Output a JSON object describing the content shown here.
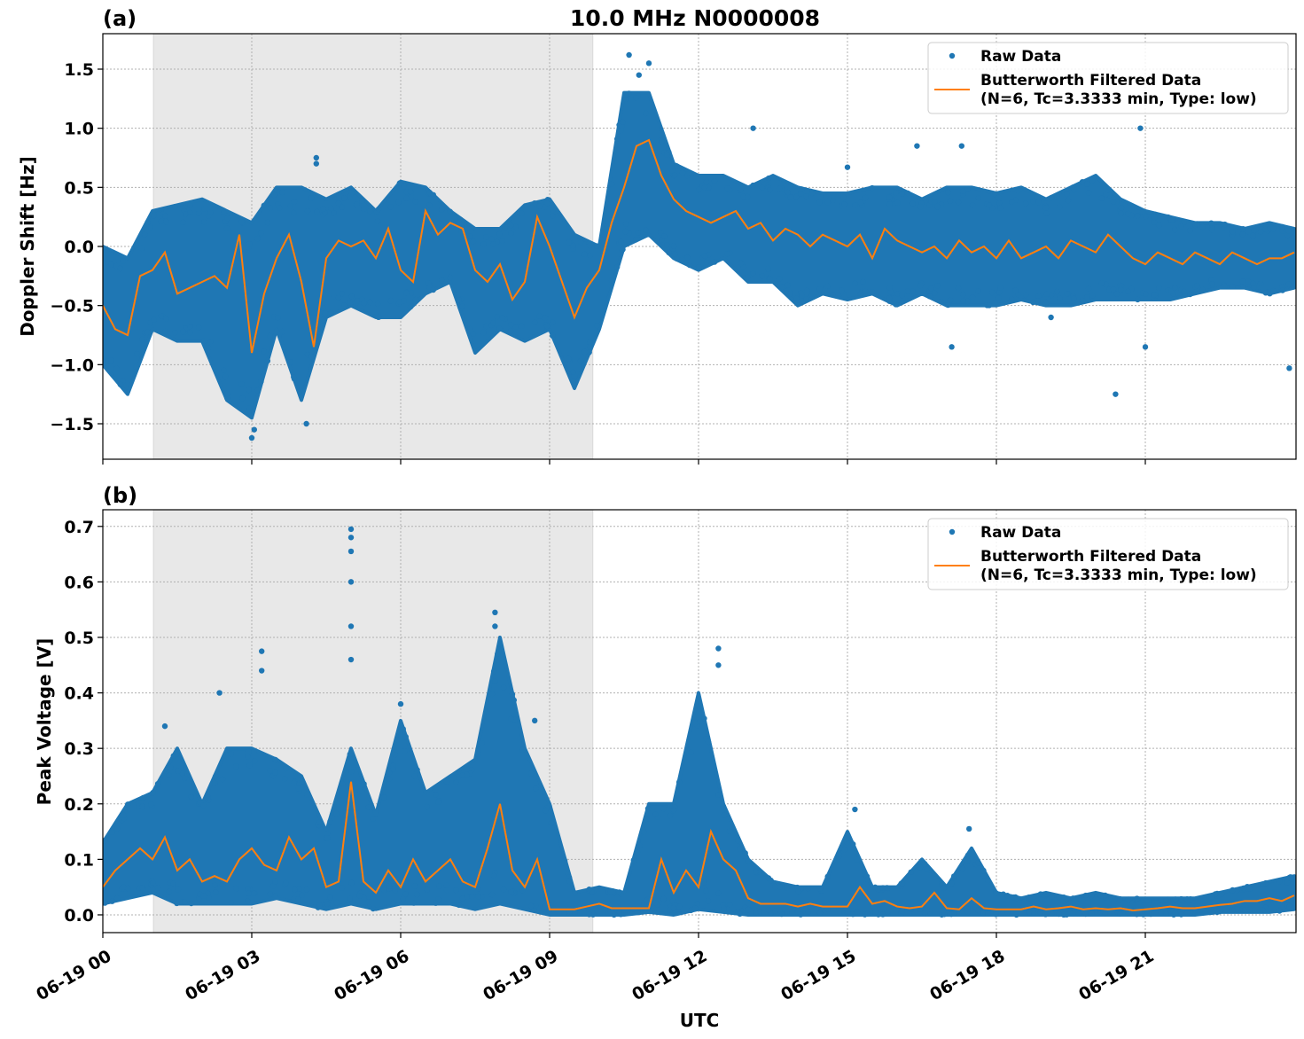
{
  "title": "10.0 MHz N0000008",
  "colors": {
    "raw": "#1f77b4",
    "filtered": "#ff7f0e",
    "shade": "#e8e8e8"
  },
  "legend": {
    "raw": "Raw Data",
    "filtered_line1": "Butterworth Filtered Data",
    "filtered_line2": "(N=6, Tc=3.3333 min, Type: low)",
    "placement": "upper-right"
  },
  "xaxis": {
    "label": "UTC",
    "unit": "hours since 06-19 00 UTC",
    "xlim": [
      0,
      24
    ],
    "ticks": [
      0,
      3,
      6,
      9,
      12,
      15,
      18,
      21
    ],
    "tick_labels": [
      "06-19 00",
      "06-19 03",
      "06-19 06",
      "06-19 09",
      "06-19 12",
      "06-19 15",
      "06-19 18",
      "06-19 21"
    ]
  },
  "chart_data": [
    {
      "type": "scatter+line",
      "panel_label": "(a)",
      "ylabel": "Doppler Shift [Hz]",
      "ylim": [
        -1.8,
        1.8
      ],
      "yticks": [
        1.5,
        1.0,
        0.5,
        0.0,
        -0.5,
        -1.0,
        -1.5
      ],
      "ytick_labels": [
        "1.5",
        "1.0",
        "0.5",
        "0.0",
        "−0.5",
        "−1.0",
        "−1.5"
      ],
      "grid": true,
      "shaded_interval": [
        1.02,
        9.87
      ],
      "filtered": {
        "t_step_hours": 0.25,
        "values": [
          -0.5,
          -0.7,
          -0.75,
          -0.25,
          -0.2,
          -0.05,
          -0.4,
          -0.35,
          -0.3,
          -0.25,
          -0.35,
          0.1,
          -0.9,
          -0.4,
          -0.1,
          0.1,
          -0.3,
          -0.85,
          -0.1,
          0.05,
          0.0,
          0.05,
          -0.1,
          0.15,
          -0.2,
          -0.3,
          0.3,
          0.1,
          0.2,
          0.15,
          -0.2,
          -0.3,
          -0.15,
          -0.45,
          -0.3,
          0.25,
          0.0,
          -0.3,
          -0.6,
          -0.35,
          -0.2,
          0.2,
          0.5,
          0.85,
          0.9,
          0.6,
          0.4,
          0.3,
          0.25,
          0.2,
          0.25,
          0.3,
          0.15,
          0.2,
          0.05,
          0.15,
          0.1,
          0.0,
          0.1,
          0.05,
          0.0,
          0.1,
          -0.1,
          0.15,
          0.05,
          0.0,
          -0.05,
          0.0,
          -0.1,
          0.05,
          -0.05,
          0.0,
          -0.1,
          0.05,
          -0.1,
          -0.05,
          0.0,
          -0.1,
          0.05,
          0.0,
          -0.05,
          0.1,
          0.0,
          -0.1,
          -0.15,
          -0.05,
          -0.1,
          -0.15,
          -0.05,
          -0.1,
          -0.15,
          -0.05,
          -0.1,
          -0.15,
          -0.1,
          -0.1,
          -0.05
        ]
      },
      "raw": {
        "t_step_hours": 0.5,
        "high": [
          0.0,
          -0.1,
          0.3,
          0.35,
          0.4,
          0.3,
          0.2,
          0.5,
          0.5,
          0.4,
          0.5,
          0.3,
          0.55,
          0.5,
          0.3,
          0.15,
          0.15,
          0.35,
          0.4,
          0.1,
          0.0,
          1.3,
          1.3,
          0.7,
          0.6,
          0.6,
          0.5,
          0.6,
          0.5,
          0.45,
          0.45,
          0.5,
          0.5,
          0.4,
          0.5,
          0.5,
          0.45,
          0.5,
          0.4,
          0.5,
          0.6,
          0.4,
          0.3,
          0.25,
          0.2,
          0.2,
          0.15,
          0.2,
          0.15
        ],
        "low": [
          -1.0,
          -1.25,
          -0.7,
          -0.8,
          -0.8,
          -1.3,
          -1.45,
          -0.7,
          -1.3,
          -0.6,
          -0.5,
          -0.6,
          -0.6,
          -0.4,
          -0.3,
          -0.9,
          -0.7,
          -0.8,
          -0.7,
          -1.2,
          -0.7,
          0.0,
          0.1,
          -0.1,
          -0.2,
          -0.1,
          -0.3,
          -0.3,
          -0.5,
          -0.4,
          -0.45,
          -0.4,
          -0.5,
          -0.4,
          -0.5,
          -0.5,
          -0.5,
          -0.45,
          -0.5,
          -0.5,
          -0.45,
          -0.45,
          -0.45,
          -0.45,
          -0.4,
          -0.35,
          -0.35,
          -0.4,
          -0.35
        ],
        "outliers": [
          [
            10.6,
            1.62
          ],
          [
            11.0,
            1.55
          ],
          [
            10.8,
            1.45
          ],
          [
            3.0,
            -1.62
          ],
          [
            3.05,
            -1.55
          ],
          [
            4.3,
            0.75
          ],
          [
            4.3,
            0.7
          ],
          [
            4.1,
            -1.5
          ],
          [
            20.9,
            1.0
          ],
          [
            20.4,
            -1.25
          ],
          [
            13.1,
            1.0
          ],
          [
            17.3,
            0.85
          ],
          [
            15.0,
            0.67
          ],
          [
            16.4,
            0.85
          ],
          [
            19.1,
            -0.6
          ],
          [
            23.9,
            -1.03
          ],
          [
            21.0,
            -0.85
          ],
          [
            17.1,
            -0.85
          ]
        ]
      }
    },
    {
      "type": "scatter+line",
      "panel_label": "(b)",
      "ylabel": "Peak Voltage [V]",
      "ylim": [
        -0.032,
        0.73
      ],
      "yticks": [
        0.7,
        0.6,
        0.5,
        0.4,
        0.3,
        0.2,
        0.1,
        0.0
      ],
      "ytick_labels": [
        "0.7",
        "0.6",
        "0.5",
        "0.4",
        "0.3",
        "0.2",
        "0.1",
        "0.0"
      ],
      "grid": true,
      "shaded_interval": [
        1.02,
        9.87
      ],
      "filtered": {
        "t_step_hours": 0.25,
        "values": [
          0.05,
          0.08,
          0.1,
          0.12,
          0.1,
          0.14,
          0.08,
          0.1,
          0.06,
          0.07,
          0.06,
          0.1,
          0.12,
          0.09,
          0.08,
          0.14,
          0.1,
          0.12,
          0.05,
          0.06,
          0.24,
          0.06,
          0.04,
          0.08,
          0.05,
          0.1,
          0.06,
          0.08,
          0.1,
          0.06,
          0.05,
          0.12,
          0.2,
          0.08,
          0.05,
          0.1,
          0.01,
          0.01,
          0.01,
          0.015,
          0.02,
          0.012,
          0.012,
          0.012,
          0.012,
          0.1,
          0.04,
          0.08,
          0.05,
          0.15,
          0.1,
          0.08,
          0.03,
          0.02,
          0.02,
          0.02,
          0.015,
          0.02,
          0.015,
          0.015,
          0.015,
          0.05,
          0.02,
          0.025,
          0.015,
          0.012,
          0.015,
          0.04,
          0.012,
          0.01,
          0.03,
          0.012,
          0.01,
          0.01,
          0.01,
          0.015,
          0.01,
          0.012,
          0.015,
          0.01,
          0.012,
          0.01,
          0.012,
          0.008,
          0.01,
          0.012,
          0.015,
          0.012,
          0.012,
          0.015,
          0.018,
          0.02,
          0.025,
          0.025,
          0.03,
          0.025,
          0.035
        ]
      },
      "raw": {
        "t_step_hours": 0.5,
        "high": [
          0.13,
          0.2,
          0.22,
          0.3,
          0.2,
          0.3,
          0.3,
          0.28,
          0.25,
          0.15,
          0.3,
          0.18,
          0.35,
          0.22,
          0.25,
          0.28,
          0.5,
          0.3,
          0.2,
          0.04,
          0.05,
          0.04,
          0.2,
          0.2,
          0.4,
          0.2,
          0.1,
          0.06,
          0.05,
          0.05,
          0.15,
          0.05,
          0.05,
          0.1,
          0.05,
          0.12,
          0.04,
          0.03,
          0.04,
          0.03,
          0.04,
          0.03,
          0.03,
          0.03,
          0.03,
          0.04,
          0.05,
          0.06,
          0.07
        ],
        "low": [
          0.02,
          0.03,
          0.04,
          0.02,
          0.02,
          0.02,
          0.02,
          0.03,
          0.02,
          0.01,
          0.02,
          0.01,
          0.02,
          0.02,
          0.02,
          0.01,
          0.02,
          0.01,
          0.0,
          0.0,
          0.0,
          0.0,
          0.005,
          0.0,
          0.01,
          0.005,
          0.0,
          0.0,
          0.0,
          0.0,
          0.0,
          0.0,
          0.0,
          0.0,
          0.0,
          0.0,
          0.0,
          0.0,
          0.0,
          0.0,
          0.0,
          0.0,
          0.0,
          0.0,
          0.0,
          0.005,
          0.005,
          0.005,
          0.01
        ],
        "outliers": [
          [
            5.0,
            0.695
          ],
          [
            5.0,
            0.68
          ],
          [
            5.0,
            0.655
          ],
          [
            5.0,
            0.6
          ],
          [
            5.0,
            0.52
          ],
          [
            5.0,
            0.46
          ],
          [
            7.9,
            0.545
          ],
          [
            7.9,
            0.52
          ],
          [
            7.95,
            0.47
          ],
          [
            12.4,
            0.48
          ],
          [
            12.4,
            0.45
          ],
          [
            3.2,
            0.475
          ],
          [
            3.2,
            0.44
          ],
          [
            2.35,
            0.4
          ],
          [
            6.0,
            0.38
          ],
          [
            1.25,
            0.34
          ],
          [
            8.7,
            0.35
          ],
          [
            15.15,
            0.19
          ],
          [
            17.45,
            0.155
          ]
        ]
      }
    }
  ]
}
